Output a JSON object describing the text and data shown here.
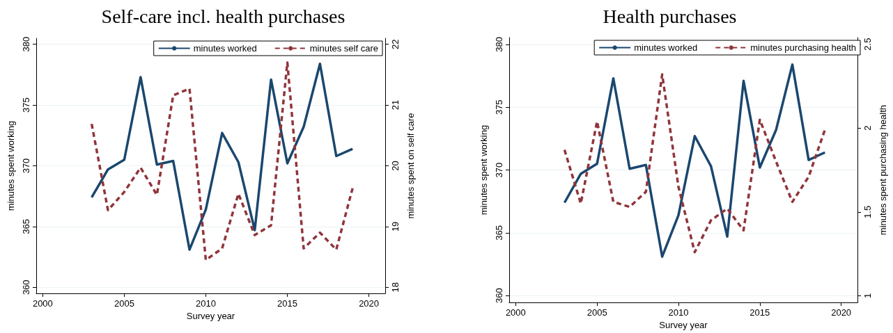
{
  "chart_data": [
    {
      "type": "line",
      "title": "Self-care incl. health purchases",
      "xlabel": "Survey year",
      "ylabel": "minutes spent working",
      "y2label": "minutes spent on self care",
      "x": [
        2003,
        2004,
        2005,
        2006,
        2007,
        2008,
        2009,
        2010,
        2011,
        2012,
        2013,
        2014,
        2015,
        2016,
        2017,
        2018,
        2019
      ],
      "series": [
        {
          "name": "minutes worked",
          "color": "#1a476f",
          "line_style": "solid",
          "values": [
            367.4,
            369.7,
            370.5,
            377.3,
            370.1,
            370.4,
            363.1,
            366.4,
            372.7,
            370.3,
            364.7,
            377.1,
            370.2,
            373.2,
            378.4,
            370.8,
            371.4
          ]
        },
        {
          "name": "minutes self care",
          "color": "#90353b",
          "line_style": "dashed",
          "axis": "y2",
          "values": [
            20.69,
            19.27,
            19.57,
            19.97,
            19.52,
            21.16,
            21.27,
            18.45,
            18.64,
            19.54,
            18.86,
            19.02,
            21.7,
            18.64,
            18.9,
            18.62,
            19.63
          ]
        }
      ],
      "xlim": [
        1999.6,
        2021
      ],
      "xticks": [
        2000,
        2005,
        2010,
        2015,
        2020
      ],
      "ylim": [
        359.5,
        380.5
      ],
      "yticks": [
        360,
        365,
        370,
        375,
        380
      ],
      "y2lim": [
        17.9,
        22.1
      ],
      "y2ticks": [
        18,
        19,
        20,
        21,
        22
      ],
      "grid": "y",
      "legend": "top",
      "marker": "none"
    },
    {
      "type": "line",
      "title": "Health purchases",
      "xlabel": "Survey year",
      "ylabel": "minutes spent working",
      "y2label": "minutes spent purchasing health",
      "x": [
        2003,
        2004,
        2005,
        2006,
        2007,
        2008,
        2009,
        2010,
        2011,
        2012,
        2013,
        2014,
        2015,
        2016,
        2017,
        2018,
        2019
      ],
      "series": [
        {
          "name": "minutes worked",
          "color": "#1a476f",
          "line_style": "solid",
          "values": [
            367.4,
            369.7,
            370.5,
            377.3,
            370.1,
            370.4,
            363.1,
            366.4,
            372.7,
            370.3,
            364.7,
            377.1,
            370.2,
            373.2,
            378.4,
            370.8,
            371.4
          ]
        },
        {
          "name": "minutes purchasing health",
          "color": "#90353b",
          "line_style": "dashed",
          "axis": "y2",
          "values": [
            1.87,
            1.55,
            2.04,
            1.56,
            1.53,
            1.62,
            2.32,
            1.65,
            1.26,
            1.45,
            1.52,
            1.39,
            2.05,
            1.8,
            1.56,
            1.71,
            1.99
          ]
        }
      ],
      "xlim": [
        1999.6,
        2021
      ],
      "xticks": [
        2000,
        2005,
        2010,
        2015,
        2020
      ],
      "ylim": [
        359.45,
        380.55
      ],
      "yticks": [
        360,
        365,
        370,
        375,
        380
      ],
      "y2lim": [
        0.96,
        2.54
      ],
      "y2ticks": [
        1,
        1.5,
        2,
        2.5
      ],
      "grid": "y",
      "legend": "top",
      "marker": "none"
    }
  ]
}
